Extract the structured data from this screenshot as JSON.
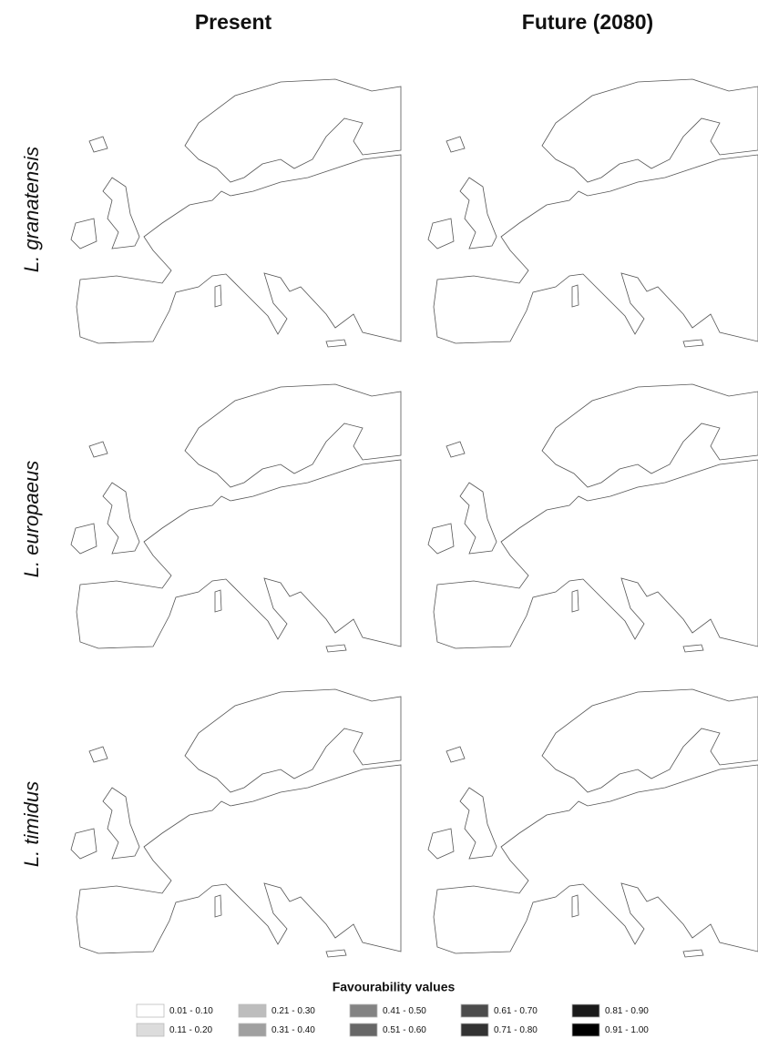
{
  "columns": [
    "Present",
    "Future (2080)"
  ],
  "rows": [
    "L. granatensis",
    "L. europaeus",
    "L. timidus"
  ],
  "legend": {
    "title": "Favourability values",
    "items": [
      {
        "label": "0.01 - 0.10",
        "color": "#ffffff"
      },
      {
        "label": "0.11 - 0.20",
        "color": "#dcdcdc"
      },
      {
        "label": "0.21 - 0.30",
        "color": "#bdbdbd"
      },
      {
        "label": "0.31 - 0.40",
        "color": "#a0a0a0"
      },
      {
        "label": "0.41 - 0.50",
        "color": "#838383"
      },
      {
        "label": "0.51 - 0.60",
        "color": "#676767"
      },
      {
        "label": "0.61 - 0.70",
        "color": "#4c4c4c"
      },
      {
        "label": "0.71 - 0.80",
        "color": "#333333"
      },
      {
        "label": "0.81 - 0.90",
        "color": "#1a1a1a"
      },
      {
        "label": "0.91 - 1.00",
        "color": "#000000"
      }
    ]
  }
}
